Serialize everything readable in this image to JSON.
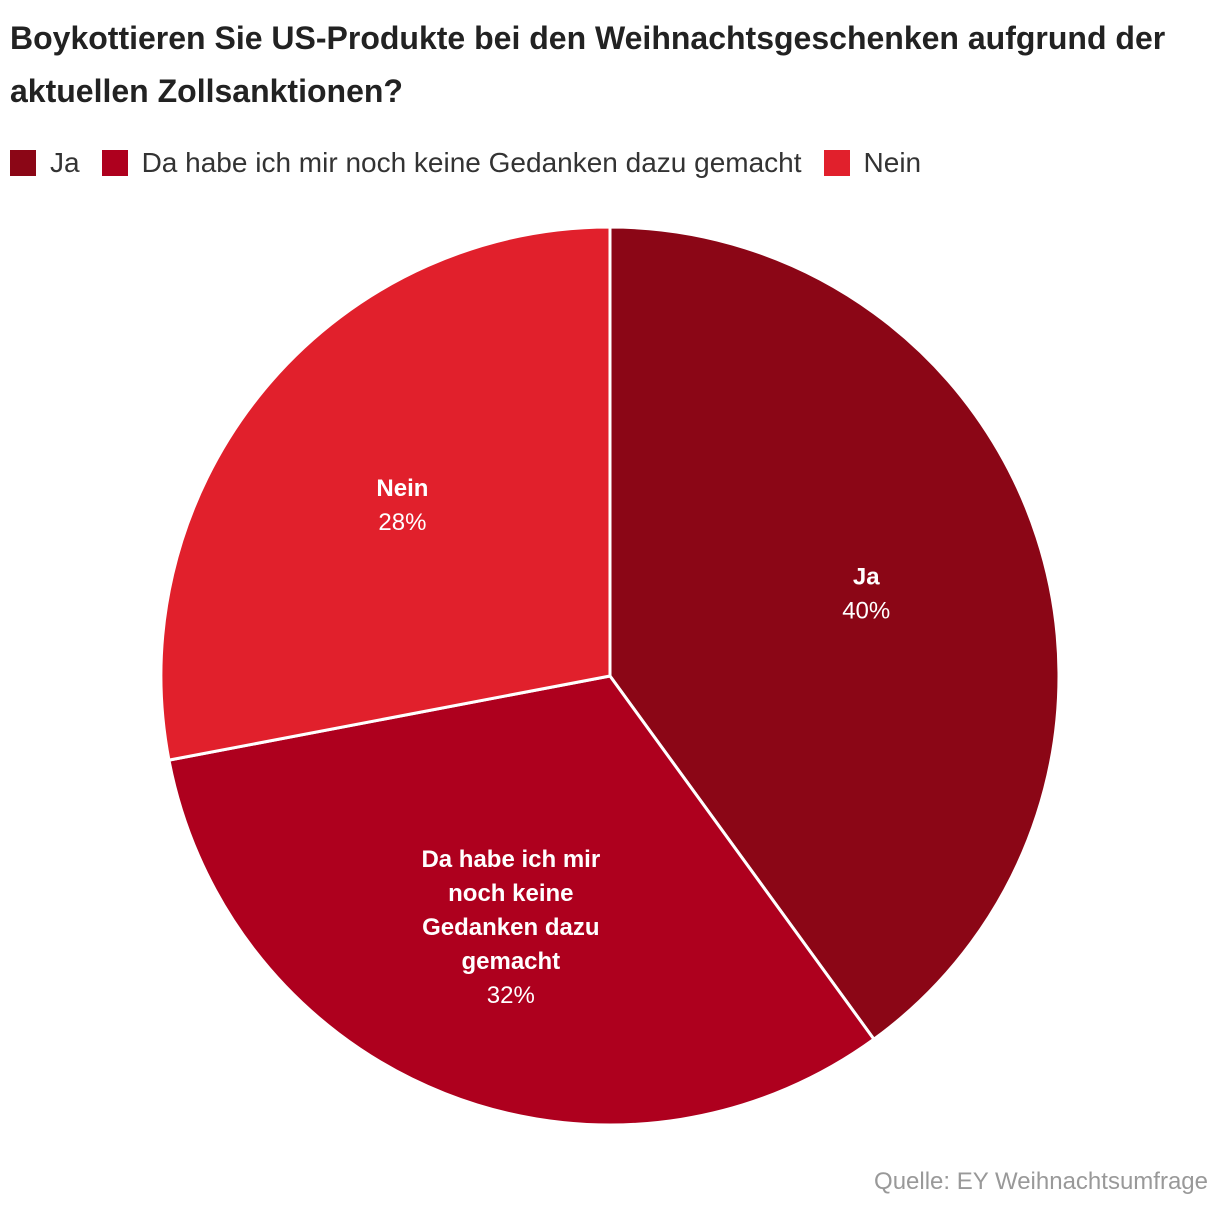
{
  "title": "Boykottieren Sie US-Produkte bei den Weihnachtsgeschenken aufgrund der aktuellen Zollsanktionen?",
  "legend": [
    {
      "label": "Ja",
      "color": "#8b0616"
    },
    {
      "label": "Da habe ich mir noch keine Gedanken dazu gemacht",
      "color": "#ae001e"
    },
    {
      "label": "Nein",
      "color": "#e1202c"
    }
  ],
  "source": "Quelle: EY Weihnachtsumfrage",
  "chart_data": {
    "type": "pie",
    "title": "Boykottieren Sie US-Produkte bei den Weihnachtsgeschenken aufgrund der aktuellen Zollsanktionen?",
    "slices": [
      {
        "label": "Ja",
        "label_lines": [
          "Ja"
        ],
        "value": 40,
        "value_label": "40%",
        "color": "#8b0616"
      },
      {
        "label": "Da habe ich mir noch keine Gedanken dazu gemacht",
        "label_lines": [
          "Da habe ich mir",
          "noch keine",
          "Gedanken dazu",
          "gemacht"
        ],
        "value": 32,
        "value_label": "32%",
        "color": "#ae001e"
      },
      {
        "label": "Nein",
        "label_lines": [
          "Nein"
        ],
        "value": 28,
        "value_label": "28%",
        "color": "#e1202c"
      }
    ],
    "start_angle": "12 o'clock",
    "direction": "clockwise",
    "legend_position": "top-left"
  }
}
